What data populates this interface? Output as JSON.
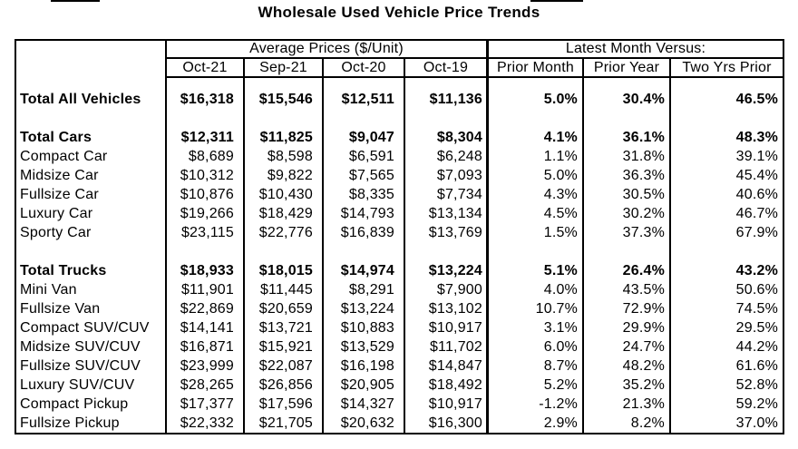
{
  "title": "Wholesale Used Vehicle Price Trends",
  "table": {
    "sections": [
      "Average Prices ($/Unit)",
      "Latest Month Versus:"
    ],
    "column_headers": [
      "Oct-21",
      "Sep-21",
      "Oct-20",
      "Oct-19",
      "Prior Month",
      "Prior Year",
      "Two Yrs Prior"
    ],
    "rows": [
      {
        "label": "Total All Vehicles",
        "bold": true,
        "values": [
          "$16,318",
          "$15,546",
          "$12,511",
          "$11,136",
          "5.0%",
          "30.4%",
          "46.5%"
        ]
      },
      {
        "blank": true
      },
      {
        "label": "Total Cars",
        "bold": true,
        "values": [
          "$12,311",
          "$11,825",
          "$9,047",
          "$8,304",
          "4.1%",
          "36.1%",
          "48.3%"
        ]
      },
      {
        "label": "Compact Car",
        "values": [
          "$8,689",
          "$8,598",
          "$6,591",
          "$6,248",
          "1.1%",
          "31.8%",
          "39.1%"
        ]
      },
      {
        "label": "Midsize Car",
        "values": [
          "$10,312",
          "$9,822",
          "$7,565",
          "$7,093",
          "5.0%",
          "36.3%",
          "45.4%"
        ]
      },
      {
        "label": "Fullsize Car",
        "values": [
          "$10,876",
          "$10,430",
          "$8,335",
          "$7,734",
          "4.3%",
          "30.5%",
          "40.6%"
        ]
      },
      {
        "label": "Luxury Car",
        "values": [
          "$19,266",
          "$18,429",
          "$14,793",
          "$13,134",
          "4.5%",
          "30.2%",
          "46.7%"
        ]
      },
      {
        "label": "Sporty Car",
        "values": [
          "$23,115",
          "$22,776",
          "$16,839",
          "$13,769",
          "1.5%",
          "37.3%",
          "67.9%"
        ]
      },
      {
        "blank": true
      },
      {
        "label": "Total Trucks",
        "bold": true,
        "values": [
          "$18,933",
          "$18,015",
          "$14,974",
          "$13,224",
          "5.1%",
          "26.4%",
          "43.2%"
        ]
      },
      {
        "label": "Mini Van",
        "values": [
          "$11,901",
          "$11,445",
          "$8,291",
          "$7,900",
          "4.0%",
          "43.5%",
          "50.6%"
        ]
      },
      {
        "label": "Fullsize Van",
        "values": [
          "$22,869",
          "$20,659",
          "$13,224",
          "$13,102",
          "10.7%",
          "72.9%",
          "74.5%"
        ]
      },
      {
        "label": "Compact SUV/CUV",
        "values": [
          "$14,141",
          "$13,721",
          "$10,883",
          "$10,917",
          "3.1%",
          "29.9%",
          "29.5%"
        ]
      },
      {
        "label": "Midsize SUV/CUV",
        "values": [
          "$16,871",
          "$15,921",
          "$13,529",
          "$11,702",
          "6.0%",
          "24.7%",
          "44.2%"
        ]
      },
      {
        "label": "Fullsize SUV/CUV",
        "values": [
          "$23,999",
          "$22,087",
          "$16,198",
          "$14,847",
          "8.7%",
          "48.2%",
          "61.6%"
        ]
      },
      {
        "label": "Luxury SUV/CUV",
        "values": [
          "$28,265",
          "$26,856",
          "$20,905",
          "$18,492",
          "5.2%",
          "35.2%",
          "52.8%"
        ]
      },
      {
        "label": "Compact Pickup",
        "values": [
          "$17,377",
          "$17,596",
          "$14,327",
          "$10,917",
          "-1.2%",
          "21.3%",
          "59.2%"
        ]
      },
      {
        "label": "Fullsize Pickup",
        "values": [
          "$22,332",
          "$21,705",
          "$20,632",
          "$16,300",
          "2.9%",
          "8.2%",
          "37.0%"
        ]
      }
    ]
  }
}
